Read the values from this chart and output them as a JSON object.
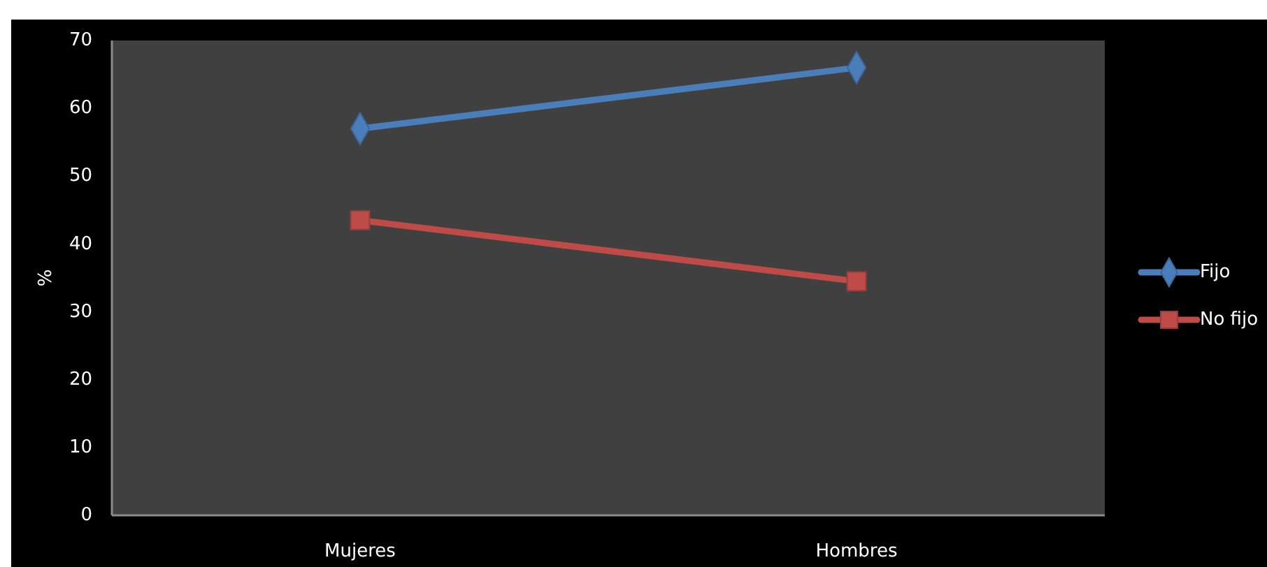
{
  "chart_data": {
    "type": "line",
    "ylabel": "%",
    "categories": [
      "Mujeres",
      "Hombres"
    ],
    "series": [
      {
        "name": "Fijo",
        "color": "#4a7ebb",
        "marker": "diamond",
        "values": [
          57,
          66
        ]
      },
      {
        "name": "No fijo",
        "color": "#be4b48",
        "marker": "square",
        "values": [
          43.5,
          34.5
        ]
      }
    ],
    "ylim": [
      0,
      70
    ],
    "yticks": [
      0,
      10,
      20,
      30,
      40,
      50,
      60,
      70
    ],
    "grid": false,
    "legend": "right",
    "line_style": "solid"
  }
}
